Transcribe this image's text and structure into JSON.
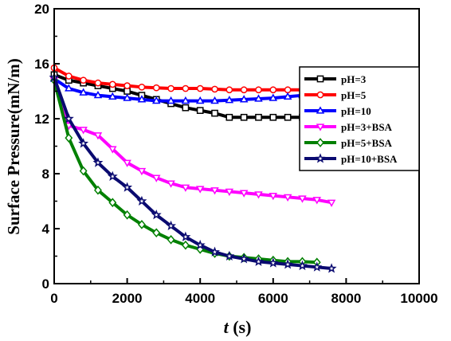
{
  "chart_data": {
    "type": "line",
    "xlabel_italic": "t",
    "xlabel_unit": " (s)",
    "ylabel": "Surface Pressure(mN/m)",
    "xlim": [
      0,
      10000
    ],
    "ylim": [
      0,
      20
    ],
    "xticks": [
      0,
      2000,
      4000,
      6000,
      8000,
      10000
    ],
    "yticks": [
      0,
      4,
      8,
      12,
      16,
      20
    ],
    "grid": false,
    "legend_position": "right-inside",
    "series": [
      {
        "name": "pH=3",
        "color": "#000000",
        "marker": "square",
        "x": [
          0,
          400,
          800,
          1200,
          1600,
          2000,
          2400,
          2800,
          3200,
          3600,
          4000,
          4400,
          4800,
          5200,
          5600,
          6000,
          6400,
          6800
        ],
        "y": [
          15.2,
          14.8,
          14.6,
          14.4,
          14.2,
          14.0,
          13.7,
          13.4,
          13.1,
          12.8,
          12.6,
          12.4,
          12.1,
          12.1,
          12.1,
          12.1,
          12.1,
          12.1
        ]
      },
      {
        "name": "pH=5",
        "color": "#ff0000",
        "marker": "circle",
        "x": [
          0,
          400,
          800,
          1200,
          1600,
          2000,
          2400,
          2800,
          3200,
          3600,
          4000,
          4400,
          4800,
          5200,
          5600,
          6000,
          6400,
          6800
        ],
        "y": [
          15.7,
          15.1,
          14.8,
          14.6,
          14.5,
          14.4,
          14.3,
          14.25,
          14.2,
          14.2,
          14.2,
          14.15,
          14.1,
          14.1,
          14.1,
          14.1,
          14.1,
          14.1
        ]
      },
      {
        "name": "pH=10",
        "color": "#0000ff",
        "marker": "triangle-up",
        "x": [
          0,
          400,
          800,
          1200,
          1600,
          2000,
          2400,
          2800,
          3200,
          3600,
          4000,
          4400,
          4800,
          5200,
          5600,
          6000,
          6400,
          6800
        ],
        "y": [
          14.9,
          14.2,
          13.9,
          13.7,
          13.6,
          13.5,
          13.4,
          13.3,
          13.3,
          13.3,
          13.3,
          13.3,
          13.35,
          13.4,
          13.45,
          13.5,
          13.6,
          13.7
        ]
      },
      {
        "name": "pH=3+BSA",
        "color": "#ff00ff",
        "marker": "triangle-down",
        "x": [
          0,
          400,
          800,
          1200,
          1600,
          2000,
          2400,
          2800,
          3200,
          3600,
          4000,
          4400,
          4800,
          5200,
          5600,
          6000,
          6400,
          6800,
          7200,
          7600
        ],
        "y": [
          14.8,
          11.5,
          11.2,
          10.8,
          9.8,
          8.8,
          8.2,
          7.7,
          7.3,
          7.0,
          6.9,
          6.8,
          6.7,
          6.6,
          6.5,
          6.4,
          6.3,
          6.2,
          6.1,
          5.9
        ]
      },
      {
        "name": "pH=5+BSA",
        "color": "#008000",
        "marker": "diamond",
        "x": [
          0,
          400,
          800,
          1200,
          1600,
          2000,
          2400,
          2800,
          3200,
          3600,
          4000,
          4400,
          4800,
          5200,
          5600,
          6000,
          6400,
          6800,
          7200
        ],
        "y": [
          14.8,
          10.6,
          8.2,
          6.8,
          5.9,
          5.0,
          4.3,
          3.7,
          3.2,
          2.8,
          2.5,
          2.2,
          2.0,
          1.9,
          1.8,
          1.7,
          1.6,
          1.6,
          1.55
        ]
      },
      {
        "name": "pH=10+BSA",
        "color": "#0a0a70",
        "marker": "star",
        "x": [
          0,
          400,
          800,
          1200,
          1600,
          2000,
          2400,
          2800,
          3200,
          3600,
          4000,
          4400,
          4800,
          5200,
          5600,
          6000,
          6400,
          6800,
          7200,
          7600
        ],
        "y": [
          15.0,
          12.0,
          10.2,
          8.8,
          7.8,
          7.0,
          6.0,
          5.0,
          4.2,
          3.4,
          2.8,
          2.3,
          2.0,
          1.8,
          1.6,
          1.5,
          1.4,
          1.3,
          1.2,
          1.1
        ]
      }
    ]
  }
}
